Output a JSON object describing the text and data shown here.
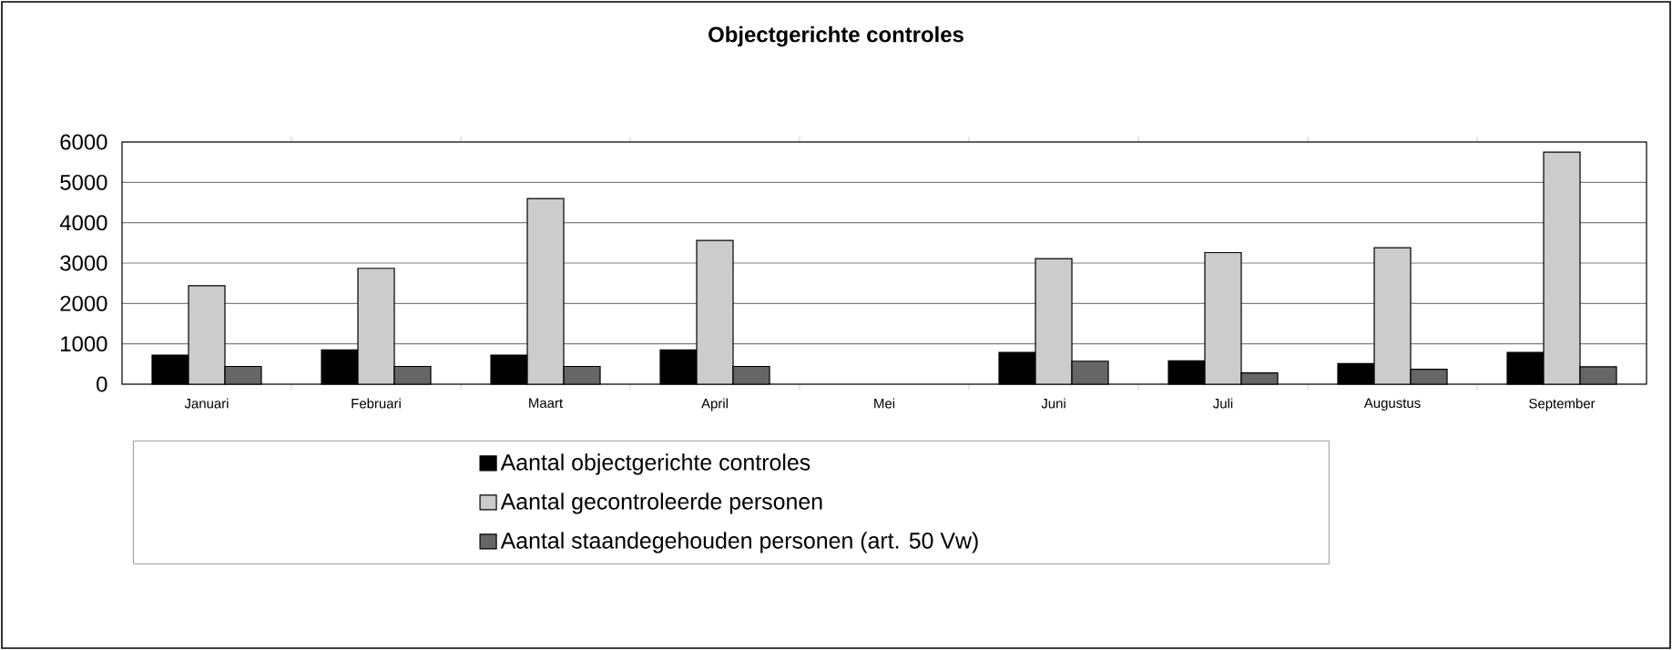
{
  "chart_data": {
    "type": "bar",
    "title": "**Objectgerichte controles**",
    "categories": [
      "Januari",
      "Februari",
      "Maart",
      "April",
      "Mei",
      "Juni",
      "Juli",
      "Augustus",
      "September"
    ],
    "series": [
      {
        "name": "Aantal objectgerichte controles",
        "color": "#000000",
        "values": [
          720,
          850,
          720,
          850,
          null,
          790,
          580,
          510,
          790
        ]
      },
      {
        "name": "Aantal gecontroleerde personen",
        "color": "#cccccc",
        "values": [
          2440,
          2870,
          4600,
          3560,
          null,
          3110,
          3260,
          3380,
          5750
        ]
      },
      {
        "name": "Aantal staandegehouden personen (art. 50 Vw)",
        "color": "#666666",
        "values": [
          440,
          440,
          440,
          440,
          null,
          570,
          280,
          370,
          430
        ]
      }
    ],
    "ylim": [
      0,
      6000
    ],
    "yticks": [
      0,
      1000,
      2000,
      3000,
      4000,
      5000,
      6000
    ],
    "grid": "y",
    "legend": "bottom"
  }
}
